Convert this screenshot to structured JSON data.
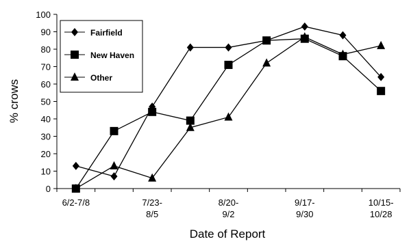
{
  "chart_data": {
    "type": "line",
    "x_label": "Date of Report",
    "y_label": "% crows",
    "categories": [
      "6/2-7/8",
      null,
      "7/23-\n8/5",
      null,
      "8/20-\n9/2",
      null,
      "9/17-\n9/30",
      null,
      "10/15-\n10/28"
    ],
    "series": [
      {
        "name": "Fairfield",
        "color": "#000000",
        "marker": "diamond",
        "values": [
          13,
          7,
          47,
          81,
          81,
          85,
          93,
          88,
          64
        ]
      },
      {
        "name": "New Haven",
        "color": "#000000",
        "marker": "square",
        "values": [
          0,
          33,
          44,
          39,
          71,
          85,
          86,
          76,
          56
        ]
      },
      {
        "name": "Other",
        "color": "#000000",
        "marker": "triangle",
        "values": [
          0,
          13,
          6,
          35,
          41,
          72,
          87,
          77,
          82
        ]
      }
    ],
    "ylim": [
      0,
      100
    ],
    "yticks": [
      0,
      10,
      20,
      30,
      40,
      50,
      60,
      70,
      80,
      90,
      100
    ],
    "grid": false,
    "legend": "top-left"
  }
}
